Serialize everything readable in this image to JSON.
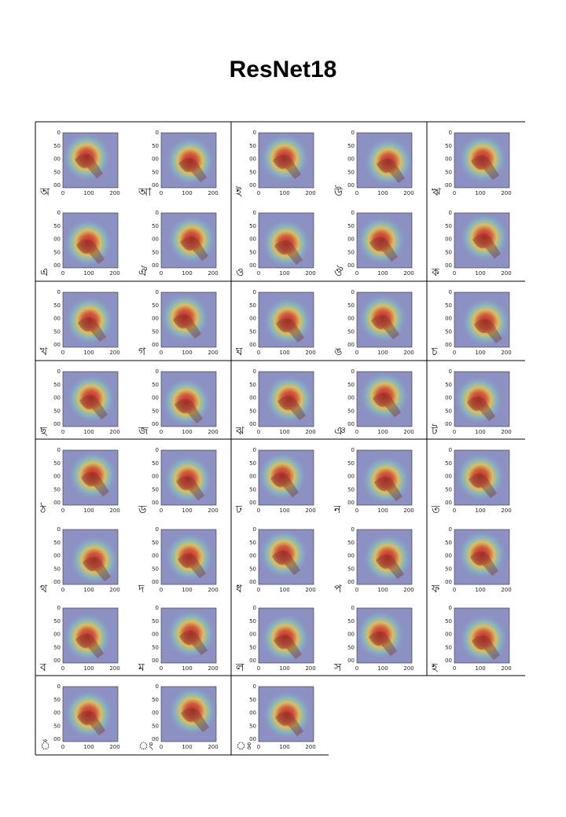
{
  "header": {
    "title": "ResNet18"
  },
  "axes": {
    "yticks": [
      "0",
      "50",
      "00",
      "50",
      "00"
    ],
    "xticks": [
      "0",
      "100",
      "200"
    ]
  },
  "cells": [
    {
      "label": "অ"
    },
    {
      "label": "আ"
    },
    {
      "label": "ই"
    },
    {
      "label": "উ"
    },
    {
      "label": "ঋ"
    },
    {
      "label": "এ"
    },
    {
      "label": "ঐ"
    },
    {
      "label": "ও"
    },
    {
      "label": "ঔ"
    },
    {
      "label": "ক"
    },
    {
      "label": "খ"
    },
    {
      "label": "গ"
    },
    {
      "label": "ঘ"
    },
    {
      "label": "ঙ"
    },
    {
      "label": "চ"
    },
    {
      "label": "ছ"
    },
    {
      "label": "জ"
    },
    {
      "label": "ঝ"
    },
    {
      "label": "ঞ"
    },
    {
      "label": "ট"
    },
    {
      "label": "ঠ"
    },
    {
      "label": "ড"
    },
    {
      "label": "ঢ"
    },
    {
      "label": "ন"
    },
    {
      "label": "ত"
    },
    {
      "label": "থ"
    },
    {
      "label": "দ"
    },
    {
      "label": "ধ"
    },
    {
      "label": "প"
    },
    {
      "label": "ফ"
    },
    {
      "label": "ব"
    },
    {
      "label": "ম"
    },
    {
      "label": "ল"
    },
    {
      "label": "স"
    },
    {
      "label": "হ"
    },
    {
      "label": "ঁ"
    },
    {
      "label": "ং"
    },
    {
      "label": "ঃ"
    }
  ]
}
